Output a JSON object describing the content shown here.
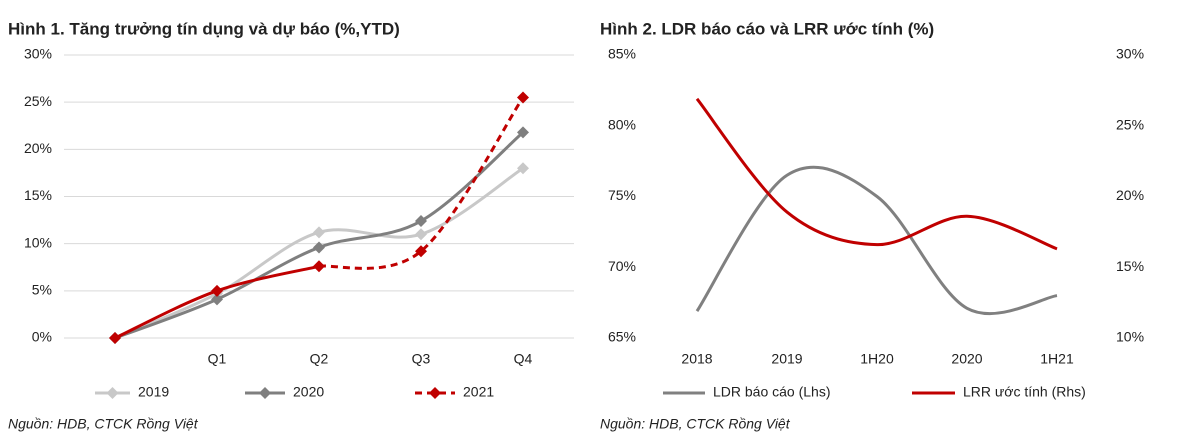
{
  "chart_data": [
    {
      "type": "line",
      "title": "Hình 1. Tăng trưởng tín dụng và dự báo (%,YTD)",
      "source": "Nguồn: HDB, CTCK Rồng Việt",
      "categories": [
        null,
        "Q1",
        "Q2",
        "Q3",
        "Q4"
      ],
      "ylim": [
        0,
        30
      ],
      "yticks": [
        {
          "value": 0,
          "label": "0%"
        },
        {
          "value": 5,
          "label": "5%"
        },
        {
          "value": 10,
          "label": "10%"
        },
        {
          "value": 15,
          "label": "15%"
        },
        {
          "value": 20,
          "label": "20%"
        },
        {
          "value": 25,
          "label": "25%"
        },
        {
          "value": 30,
          "label": "30%"
        }
      ],
      "grid": true,
      "smooth": true,
      "markers": "diamond",
      "legend": "bottom",
      "series": [
        {
          "name": "2019",
          "color": "#c8c8c8",
          "values": [
            0,
            4.7,
            11.2,
            11.0,
            18.0
          ]
        },
        {
          "name": "2020",
          "color": "#7f7f7f",
          "values": [
            0,
            4.1,
            9.6,
            12.4,
            21.8
          ]
        },
        {
          "name": "2021",
          "color": "#c00000",
          "values": [
            0,
            5.0,
            7.6,
            9.2,
            25.5
          ],
          "dashed_from": 2
        }
      ]
    },
    {
      "type": "line",
      "title": "Hình 2. LDR báo cáo và LRR ước tính (%)",
      "source": "Nguồn: HDB, CTCK Rồng Việt",
      "categories": [
        "2018",
        "2019",
        "1H20",
        "2020",
        "1H21"
      ],
      "ylim": [
        65,
        85
      ],
      "yticks": [
        {
          "value": 65,
          "label": "65%"
        },
        {
          "value": 70,
          "label": "70%"
        },
        {
          "value": 75,
          "label": "75%"
        },
        {
          "value": 80,
          "label": "80%"
        },
        {
          "value": 85,
          "label": "85%"
        }
      ],
      "y2lim": [
        10,
        30
      ],
      "y2ticks": [
        {
          "value": 10,
          "label": "10%"
        },
        {
          "value": 15,
          "label": "15%"
        },
        {
          "value": 20,
          "label": "20%"
        },
        {
          "value": 25,
          "label": "25%"
        },
        {
          "value": 30,
          "label": "30%"
        }
      ],
      "grid": false,
      "smooth": true,
      "legend": "bottom",
      "series": [
        {
          "name": "LDR báo cáo (Lhs)",
          "color": "#808080",
          "values": [
            66.9,
            76.5,
            75.0,
            67.1,
            68.0
          ]
        },
        {
          "name": "LRR ước tính (Rhs)",
          "color": "#c00000",
          "axis": "y2",
          "values": [
            26.9,
            18.9,
            16.6,
            18.6,
            16.3
          ]
        }
      ]
    }
  ]
}
